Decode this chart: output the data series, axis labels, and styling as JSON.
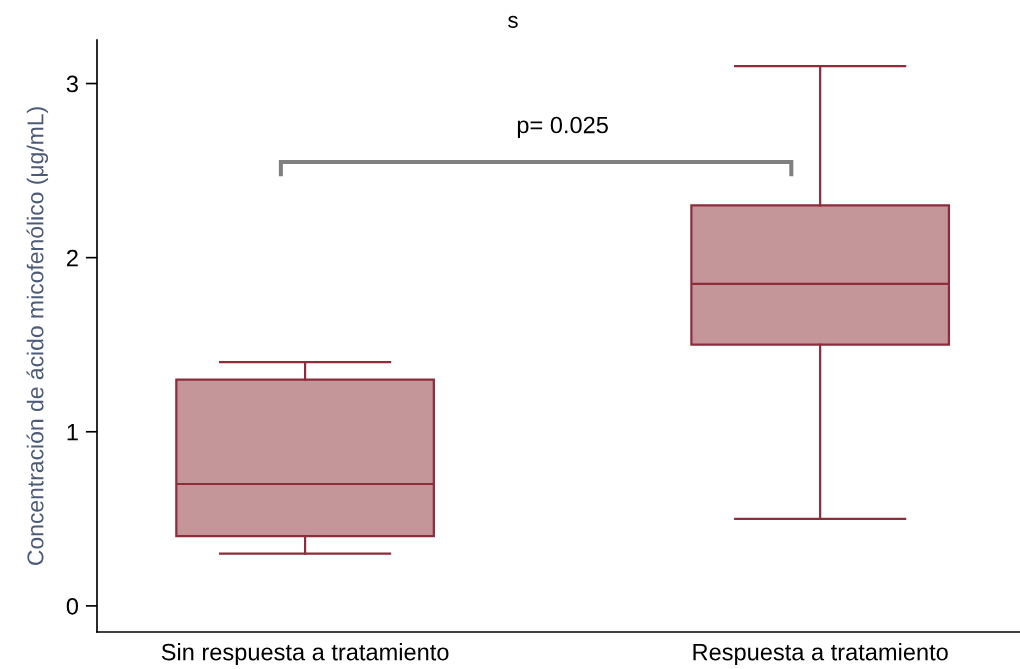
{
  "chart_data": {
    "type": "box",
    "title": "s",
    "ylabel": "Concentración de ácido micofenólico (μg/mL)",
    "categories": [
      "Sin respuesta a tratamiento",
      "Respuesta a tratamiento"
    ],
    "series": [
      {
        "color": "#c4969a",
        "boxes": [
          {
            "low": 0.3,
            "q1": 0.4,
            "median": 0.7,
            "q3": 1.3,
            "high": 1.4
          },
          {
            "low": 0.5,
            "q1": 1.5,
            "median": 1.85,
            "q3": 2.3,
            "high": 3.1
          }
        ]
      }
    ],
    "ylim": [
      -0.15,
      3.25
    ],
    "yticks": [
      0,
      1,
      2,
      3
    ],
    "annotations": [
      "p= 0.025"
    ]
  }
}
